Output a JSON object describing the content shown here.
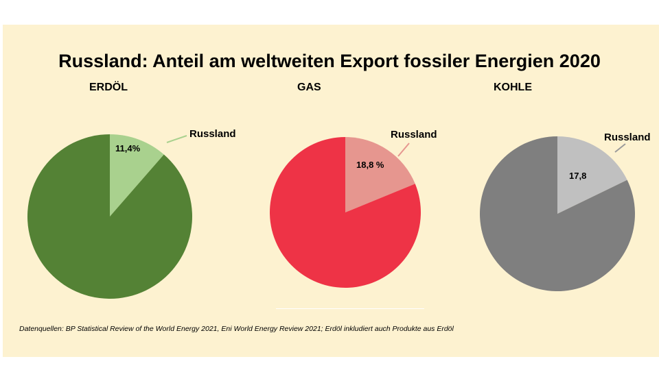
{
  "chart_data": {
    "type": "pie",
    "title": "Russland: Anteil am weltweiten Export fossiler Energien 2020",
    "charts": [
      {
        "title": "ERDÖL",
        "slices": [
          {
            "label": "Russland",
            "value": 11.4,
            "value_label": "11,4%"
          },
          {
            "value": 88.6
          }
        ],
        "colors": {
          "russland": "#a9d18e",
          "rest": "#548235"
        }
      },
      {
        "title": "GAS",
        "slices": [
          {
            "label": "Russland",
            "value": 18.8,
            "value_label": "18,8 %"
          },
          {
            "value": 81.2
          }
        ],
        "colors": {
          "russland": "#e6968f",
          "rest": "#ee3346"
        }
      },
      {
        "title": "KOHLE",
        "slices": [
          {
            "label": "Russland",
            "value": 17.8,
            "value_label": "17,8"
          },
          {
            "value": 82.2
          }
        ],
        "colors": {
          "russland": "#c0c0c0",
          "rest": "#7f7f7f"
        }
      }
    ],
    "source": "Datenquellen: BP Statistical Review of the World Energy 2021, Eni World Energy Review 2021; Erdöl inkludiert auch Produkte aus Erdöl"
  }
}
